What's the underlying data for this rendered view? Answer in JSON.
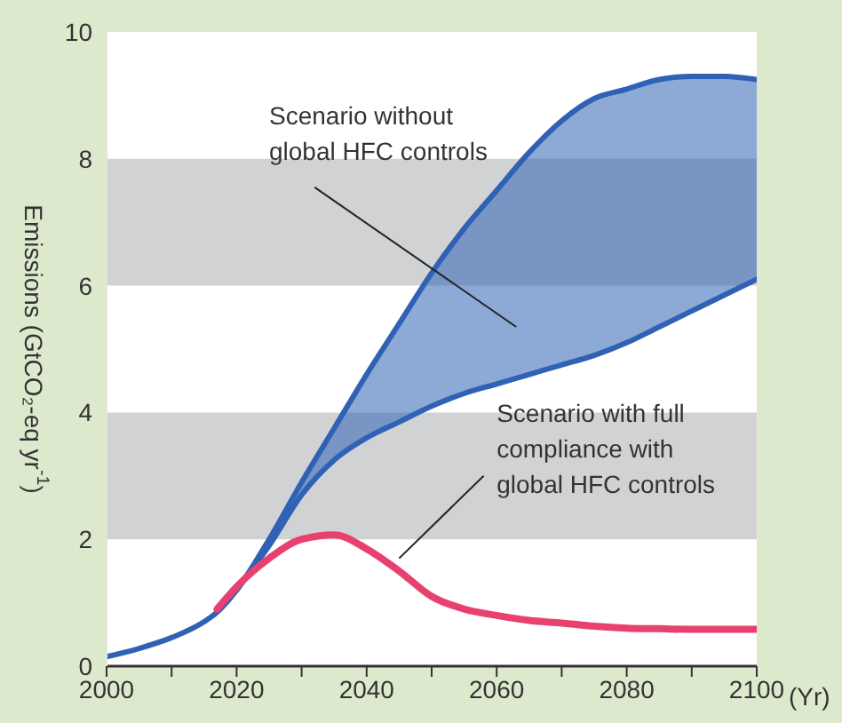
{
  "chart_data": {
    "type": "line",
    "ylabel": "Emissions (GtCO₂-eq yr$^{-1}$)",
    "xlabel": "(Yr)",
    "x": [
      2000,
      2005,
      2010,
      2015,
      2017,
      2020,
      2025,
      2030,
      2035,
      2040,
      2045,
      2050,
      2055,
      2060,
      2065,
      2070,
      2075,
      2080,
      2085,
      2090,
      2095,
      2100
    ],
    "series": [
      {
        "name": "Scenario without global HFC controls",
        "color": "#2f62b5",
        "values": [
          0.15,
          0.28,
          0.45,
          0.7,
          0.85,
          1.2,
          2.0,
          2.9,
          3.75,
          4.6,
          5.4,
          6.2,
          6.9,
          7.5,
          8.1,
          8.6,
          8.95,
          9.1,
          9.25,
          9.3,
          9.3,
          9.25
        ],
        "lower": [
          null,
          null,
          null,
          null,
          null,
          1.2,
          1.9,
          2.7,
          3.25,
          3.6,
          3.85,
          4.1,
          4.3,
          4.45,
          4.6,
          4.75,
          4.9,
          5.1,
          5.35,
          5.6,
          5.85,
          6.1
        ],
        "upper": [
          null,
          null,
          null,
          null,
          null,
          1.2,
          2.0,
          2.9,
          3.75,
          4.6,
          5.4,
          6.2,
          6.9,
          7.5,
          8.1,
          8.6,
          8.95,
          9.1,
          9.25,
          9.3,
          9.3,
          9.25
        ]
      },
      {
        "color": "#2f62b5",
        "values": [
          null,
          null,
          null,
          null,
          null,
          1.2,
          1.9,
          2.7,
          3.25,
          3.6,
          3.85,
          4.1,
          4.3,
          4.45,
          4.6,
          4.75,
          4.9,
          5.1,
          5.35,
          5.6,
          5.85,
          6.1
        ]
      },
      {
        "name": "Scenario with full compliance with global HFC controls",
        "color": "#e8416f",
        "values": [
          null,
          null,
          null,
          null,
          0.9,
          1.25,
          1.7,
          2.0,
          2.07,
          1.85,
          1.5,
          1.1,
          0.9,
          0.8,
          0.72,
          0.68,
          0.63,
          0.6,
          0.59,
          0.58,
          0.58,
          0.58
        ]
      }
    ],
    "xlim": [
      2000,
      2100
    ],
    "xticks": [
      2000,
      {
        "value": 2010,
        "label": null
      },
      2020,
      {
        "value": 2030,
        "label": null
      },
      2040,
      {
        "value": 2050,
        "label": null
      },
      2060,
      {
        "value": 2070,
        "label": null
      },
      2080,
      {
        "value": 2090,
        "label": null
      },
      2100
    ],
    "ylim": [
      0,
      10
    ],
    "yticks": [
      0,
      2,
      4,
      6,
      8,
      10
    ],
    "bands": [
      {
        "axis": "y",
        "from": 2,
        "to": 4,
        "color": "#d1d2d4"
      },
      {
        "axis": "y",
        "from": 6,
        "to": 8,
        "color": "#d1d2d4"
      }
    ],
    "grid": false,
    "legend": false,
    "marker": "none",
    "line_style": "solid"
  }
}
